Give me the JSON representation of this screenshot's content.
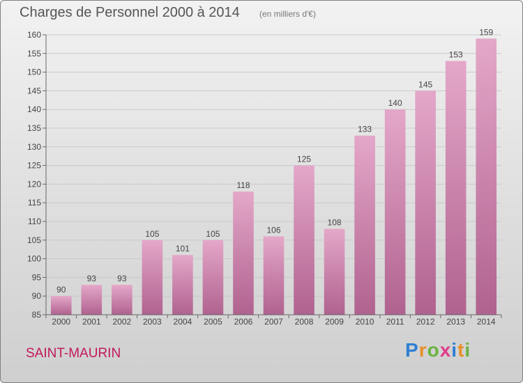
{
  "chart_data": {
    "type": "bar",
    "title": "Charges de Personnel 2000 à 2014",
    "subtitle": "(en milliers d'€)",
    "categories": [
      "2000",
      "2001",
      "2002",
      "2003",
      "2004",
      "2005",
      "2006",
      "2007",
      "2008",
      "2009",
      "2010",
      "2011",
      "2012",
      "2013",
      "2014"
    ],
    "values": [
      90,
      93,
      93,
      105,
      101,
      105,
      118,
      106,
      125,
      108,
      133,
      140,
      145,
      153,
      159
    ],
    "ylim": [
      85,
      160
    ],
    "yticks": [
      85,
      90,
      95,
      100,
      105,
      110,
      115,
      120,
      125,
      130,
      135,
      140,
      145,
      150,
      155,
      160
    ],
    "grid": true,
    "bar_color": "#d88db5"
  },
  "footer": {
    "place": "SAINT-MAURIN",
    "logo_letters": [
      "P",
      "r",
      "o",
      "x",
      "i",
      "t",
      "i"
    ],
    "logo_colors": [
      "#2e7fd1",
      "#e8912a",
      "#6ab33f",
      "#e03c8c",
      "#2e7fd1",
      "#e8912a",
      "#6ab33f"
    ]
  }
}
